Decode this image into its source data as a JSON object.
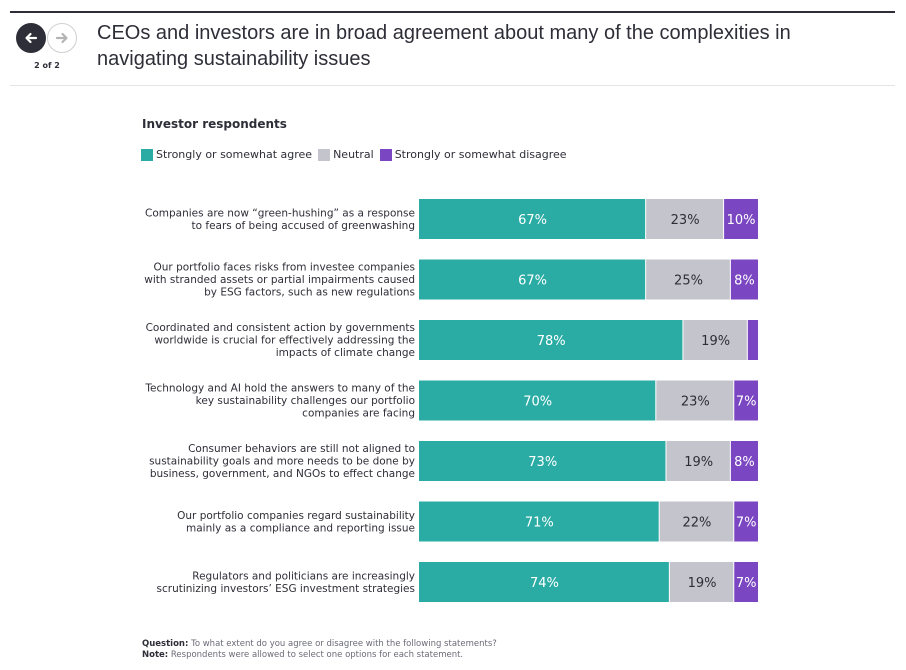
{
  "header": {
    "title": "CEOs and investors are in broad agreement about many of the complexities in navigating sustainability issues",
    "pager": "2 of 2",
    "prev_icon": "arrow-left-icon",
    "next_icon": "arrow-right-icon"
  },
  "colors": {
    "agree": "#2aaca5",
    "neutral": "#c4c4cc",
    "disagree": "#7a46c1",
    "text_dark": "#2e2e38",
    "bar_text_light": "#ffffff"
  },
  "chart_data": {
    "type": "bar",
    "orientation": "horizontal",
    "stacked": true,
    "title": "Investor respondents",
    "legend": [
      "Strongly or somewhat agree",
      "Neutral",
      "Strongly or somewhat disagree"
    ],
    "legend_position": "top-left",
    "categories": [
      [
        "Companies are now “green-hushing” as a response",
        "to fears of being accused of greenwashing"
      ],
      [
        "Our portfolio faces risks from investee companies",
        "with stranded assets or partial impairments caused",
        "by ESG factors, such as new regulations"
      ],
      [
        "Coordinated and consistent action by governments",
        "worldwide is crucial for effectively addressing the",
        "impacts of climate change"
      ],
      [
        "Technology and AI hold the answers to many of the",
        "key sustainability challenges our portfolio",
        "companies are facing"
      ],
      [
        "Consumer behaviors are still not aligned to",
        "sustainability goals and more needs to be done by",
        "business, government, and NGOs to effect change"
      ],
      [
        "Our portfolio companies regard sustainability",
        "mainly as a compliance and reporting issue"
      ],
      [
        "Regulators and politicians are increasingly",
        "scrutinizing investors’ ESG investment strategies"
      ]
    ],
    "series": [
      {
        "name": "Strongly or somewhat agree",
        "values": [
          67,
          67,
          78,
          70,
          73,
          71,
          74
        ],
        "labels": [
          "67%",
          "67%",
          "78%",
          "70%",
          "73%",
          "71%",
          "74%"
        ]
      },
      {
        "name": "Neutral",
        "values": [
          23,
          25,
          19,
          23,
          19,
          22,
          19
        ],
        "labels": [
          "23%",
          "25%",
          "19%",
          "23%",
          "19%",
          "22%",
          "19%"
        ]
      },
      {
        "name": "Strongly or somewhat disagree",
        "values": [
          10,
          8,
          3,
          7,
          8,
          7,
          7
        ],
        "labels": [
          "10%",
          "8%",
          "",
          "7%",
          "8%",
          "7%",
          "7%"
        ]
      }
    ],
    "xlim": [
      0,
      100
    ]
  },
  "footer": {
    "question_label": "Question:",
    "question_text": "To what extent do you agree or disagree with the following statements?",
    "note_label": "Note:",
    "note_text": "Respondents were allowed to select one options for each statement."
  }
}
